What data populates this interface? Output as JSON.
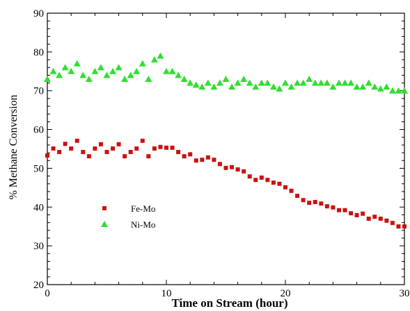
{
  "chart_data": {
    "type": "scatter",
    "xlabel": "Time on Stream (hour)",
    "ylabel": "% Methane Conversion",
    "xlim": [
      0,
      30
    ],
    "ylim": [
      20,
      90
    ],
    "x_ticks": [
      0,
      10,
      20,
      30
    ],
    "y_ticks": [
      20,
      30,
      40,
      50,
      60,
      70,
      80,
      90
    ],
    "grid": false,
    "legend_position": "lower-left",
    "x": [
      0,
      0.5,
      1,
      1.5,
      2,
      2.5,
      3,
      3.5,
      4,
      4.5,
      5,
      5.5,
      6,
      6.5,
      7,
      7.5,
      8,
      8.5,
      9,
      9.5,
      10,
      10.5,
      11,
      11.5,
      12,
      12.5,
      13,
      13.5,
      14,
      14.5,
      15,
      15.5,
      16,
      16.5,
      17,
      17.5,
      18,
      18.5,
      19,
      19.5,
      20,
      20.5,
      21,
      21.5,
      22,
      22.5,
      23,
      23.5,
      24,
      24.5,
      25,
      25.5,
      26,
      26.5,
      27,
      27.5,
      28,
      28.5,
      29,
      29.5,
      30
    ],
    "series": [
      {
        "name": "Fe-Mo",
        "marker": "square",
        "color": "#cc1111",
        "values": [
          53.3,
          55.1,
          54.2,
          56.3,
          55.1,
          57.1,
          54.2,
          53.1,
          55.1,
          56.2,
          54.2,
          55.1,
          56.2,
          53.1,
          54.2,
          55.1,
          57.1,
          53.1,
          55.1,
          55.5,
          55.3,
          55.3,
          54.2,
          53.1,
          53.6,
          52.0,
          52.2,
          52.8,
          52.2,
          51.1,
          50.1,
          50.3,
          49.7,
          49.2,
          47.9,
          47.0,
          47.6,
          47.0,
          46.3,
          46.0,
          45.1,
          44.2,
          42.9,
          41.8,
          41.1,
          41.3,
          40.9,
          40.2,
          39.9,
          39.2,
          39.2,
          38.4,
          37.9,
          38.3,
          37.0,
          37.5,
          37.0,
          36.5,
          35.9,
          35.0,
          35.0
        ]
      },
      {
        "name": "Ni-Mo",
        "marker": "triangle",
        "color": "#33dd33",
        "values": [
          73,
          75,
          74,
          76,
          75,
          77,
          74,
          73,
          75,
          76,
          74,
          75,
          76,
          73,
          74,
          75,
          77,
          73,
          78,
          79,
          75,
          75,
          74,
          73,
          72,
          71.5,
          71,
          72,
          71,
          72,
          73,
          71,
          72,
          73,
          72,
          71,
          72,
          72,
          71,
          70.5,
          72,
          71,
          72,
          72,
          73,
          72,
          72,
          72,
          71,
          72,
          72,
          72,
          71,
          71,
          72,
          71,
          70.5,
          71,
          70,
          70,
          70
        ]
      }
    ]
  }
}
